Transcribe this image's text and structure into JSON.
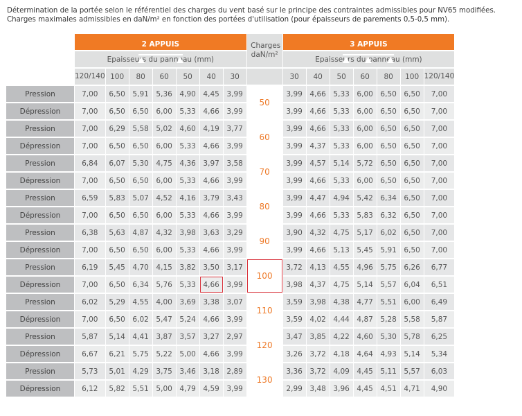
{
  "intro": {
    "line1": "Détermination de la portée selon le référentiel des charges du vent basé sur le principe des contraintes admissibles pour NV65 modifiées.",
    "line2": "Charges maximales admissibles en daN/m² en fonction des portées d'utilisation (pour épaisseurs de parements 0,5-0,5 mm)."
  },
  "header": {
    "left_title": "2 APPUIS",
    "right_title": "3 APPUIS",
    "charges_label": "Charges daN/m²",
    "subheader": "Epaisseurs du panneau (mm)",
    "left_cols": [
      "120/140",
      "100",
      "80",
      "60",
      "50",
      "40",
      "30"
    ],
    "right_cols": [
      "30",
      "40",
      "50",
      "60",
      "80",
      "100",
      "120/140"
    ]
  },
  "row_labels": {
    "pression": "Pression",
    "depression": "Dépression"
  },
  "groups": [
    {
      "charge": "50",
      "pression": {
        "left": [
          "7,00",
          "6,50",
          "5,91",
          "5,36",
          "4,90",
          "4,45",
          "3,99"
        ],
        "right": [
          "3,99",
          "4,66",
          "5,33",
          "6,00",
          "6,50",
          "6,50",
          "7,00"
        ]
      },
      "depression": {
        "left": [
          "7,00",
          "6,50",
          "6,50",
          "6,00",
          "5,33",
          "4,66",
          "3,99"
        ],
        "right": [
          "3,99",
          "4,66",
          "5,33",
          "6,00",
          "6,50",
          "6,50",
          "7,00"
        ]
      }
    },
    {
      "charge": "60",
      "pression": {
        "left": [
          "7,00",
          "6,29",
          "5,58",
          "5,02",
          "4,60",
          "4,19",
          "3,77"
        ],
        "right": [
          "3,99",
          "4,66",
          "5,33",
          "6,00",
          "6,50",
          "6,50",
          "7,00"
        ]
      },
      "depression": {
        "left": [
          "7,00",
          "6,50",
          "6,50",
          "6,00",
          "5,33",
          "4,66",
          "3,99"
        ],
        "right": [
          "3,99",
          "4,37",
          "5,33",
          "6,00",
          "6,50",
          "6,50",
          "7,00"
        ]
      }
    },
    {
      "charge": "70",
      "pression": {
        "left": [
          "6,84",
          "6,07",
          "5,30",
          "4,75",
          "4,36",
          "3,97",
          "3,58"
        ],
        "right": [
          "3,99",
          "4,57",
          "5,14",
          "5,72",
          "6,50",
          "6,50",
          "7,00"
        ]
      },
      "depression": {
        "left": [
          "7,00",
          "6,50",
          "6,50",
          "6,00",
          "5,33",
          "4,66",
          "3,99"
        ],
        "right": [
          "3,99",
          "4,66",
          "5,33",
          "6,00",
          "6,50",
          "6,50",
          "7,00"
        ]
      }
    },
    {
      "charge": "80",
      "pression": {
        "left": [
          "6,59",
          "5,83",
          "5,07",
          "4,52",
          "4,16",
          "3,79",
          "3,43"
        ],
        "right": [
          "3,99",
          "4,47",
          "4,94",
          "5,42",
          "6,34",
          "6,50",
          "7,00"
        ]
      },
      "depression": {
        "left": [
          "7,00",
          "6,50",
          "6,50",
          "6,00",
          "5,33",
          "4,66",
          "3,99"
        ],
        "right": [
          "3,99",
          "4,66",
          "5,33",
          "5,83",
          "6,32",
          "6,50",
          "7,00"
        ]
      }
    },
    {
      "charge": "90",
      "pression": {
        "left": [
          "6,38",
          "5,63",
          "4,87",
          "4,32",
          "3,98",
          "3,63",
          "3,29"
        ],
        "right": [
          "3,90",
          "4,32",
          "4,75",
          "5,17",
          "6,02",
          "6,50",
          "7,00"
        ]
      },
      "depression": {
        "left": [
          "7,00",
          "6,50",
          "6,50",
          "6,00",
          "5,33",
          "4,66",
          "3,99"
        ],
        "right": [
          "3,99",
          "4,66",
          "5,13",
          "5,45",
          "5,91",
          "6,50",
          "7,00"
        ]
      }
    },
    {
      "charge": "100",
      "pression": {
        "left": [
          "6,19",
          "5,45",
          "4,70",
          "4,15",
          "3,82",
          "3,50",
          "3,17"
        ],
        "right": [
          "3,72",
          "4,13",
          "4,55",
          "4,96",
          "5,75",
          "6,26",
          "6,77"
        ]
      },
      "depression": {
        "left": [
          "7,00",
          "6,50",
          "6,34",
          "5,76",
          "5,33",
          "4,66",
          "3,99"
        ],
        "right": [
          "3,98",
          "4,37",
          "4,75",
          "5,14",
          "5,57",
          "6,04",
          "6,51"
        ]
      }
    },
    {
      "charge": "110",
      "pression": {
        "left": [
          "6,02",
          "5,29",
          "4,55",
          "4,00",
          "3,69",
          "3,38",
          "3,07"
        ],
        "right": [
          "3,59",
          "3,98",
          "4,38",
          "4,77",
          "5,51",
          "6,00",
          "6,49"
        ]
      },
      "depression": {
        "left": [
          "7,00",
          "6,50",
          "6,02",
          "5,47",
          "5,24",
          "4,66",
          "3,99"
        ],
        "right": [
          "3,59",
          "4,02",
          "4,44",
          "4,87",
          "5,28",
          "5,58",
          "5,87"
        ]
      }
    },
    {
      "charge": "120",
      "pression": {
        "left": [
          "5,87",
          "5,14",
          "4,41",
          "3,87",
          "3,57",
          "3,27",
          "2,97"
        ],
        "right": [
          "3,47",
          "3,85",
          "4,22",
          "4,60",
          "5,30",
          "5,78",
          "6,25"
        ]
      },
      "depression": {
        "left": [
          "6,67",
          "6,21",
          "5,75",
          "5,22",
          "5,00",
          "4,66",
          "3,99"
        ],
        "right": [
          "3,26",
          "3,72",
          "4,18",
          "4,64",
          "4,93",
          "5,14",
          "5,34"
        ]
      }
    },
    {
      "charge": "130",
      "pression": {
        "left": [
          "5,73",
          "5,01",
          "4,29",
          "3,75",
          "3,46",
          "3,18",
          "2,89"
        ],
        "right": [
          "3,36",
          "3,72",
          "4,09",
          "4,45",
          "5,11",
          "5,57",
          "6,03"
        ]
      },
      "depression": {
        "left": [
          "6,12",
          "5,82",
          "5,51",
          "5,00",
          "4,79",
          "4,59",
          "3,99"
        ],
        "right": [
          "2,99",
          "3,48",
          "3,96",
          "4,45",
          "4,51",
          "4,71",
          "4,90"
        ]
      }
    }
  ],
  "highlights": {
    "charge_cell": "100",
    "value_cell": "depression-left-40"
  },
  "colors": {
    "orange": "#f07a24",
    "highlight_red": "#d9333c",
    "charge_text": "#ee7b2a"
  }
}
